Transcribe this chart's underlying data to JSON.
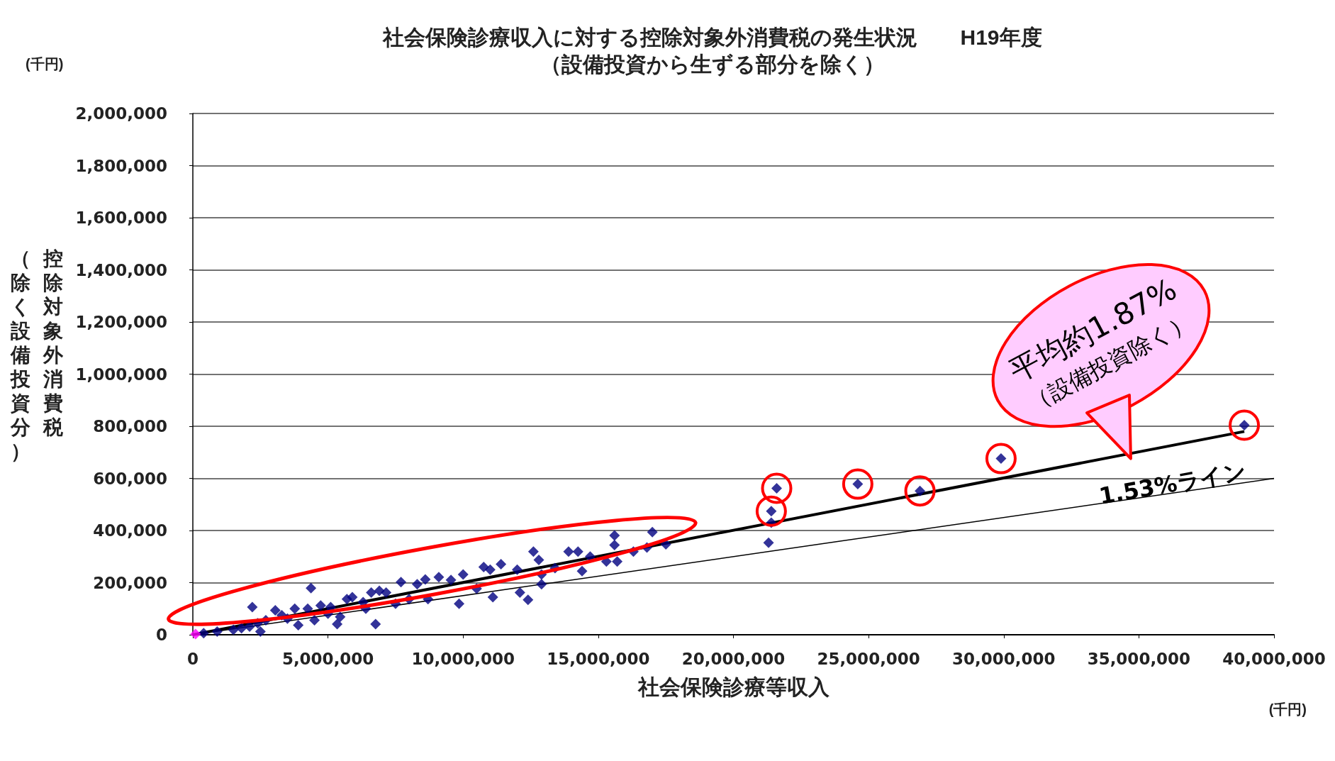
{
  "chart_data": {
    "type": "scatter",
    "title": "社会保険診療収入に対する控除対象外消費税の発生状況　　H19年度",
    "subtitle": "（設備投資から生ずる部分を除く）",
    "xlabel": "社会保険診療等収入",
    "ylabel": "控除対象外消費税",
    "annotations": [
      "(千円)",
      "(千円)",
      "平均約1.87%\n（設備投資除く）",
      "1.53%ライン",
      "（除く設備投資分）"
    ],
    "marker": "diamond",
    "grid": "y",
    "xlim": [
      0,
      40000000
    ],
    "ylim": [
      0,
      2000000
    ],
    "xticks": [
      0,
      {
        "value": 5000000,
        "label": "5,000,000"
      },
      {
        "value": 10000000,
        "label": "10,000,000"
      },
      {
        "value": 15000000,
        "label": "15,000,000"
      },
      {
        "value": 20000000,
        "label": "20,000,000"
      },
      {
        "value": 25000000,
        "label": "25,000,000"
      },
      {
        "value": 30000000,
        "label": "30,000,000"
      },
      {
        "value": 35000000,
        "label": "35,000,000"
      },
      {
        "value": 40000000,
        "label": "40,000,000"
      }
    ],
    "yticks": [
      0,
      {
        "value": 200000,
        "label": "200,000"
      },
      {
        "value": 400000,
        "label": "400,000"
      },
      {
        "value": 600000,
        "label": "600,000"
      },
      {
        "value": 800000,
        "label": "800,000"
      },
      {
        "value": 1000000,
        "label": "1,000,000"
      },
      {
        "value": 1200000,
        "label": "1,200,000"
      },
      {
        "value": 1400000,
        "label": "1,400,000"
      },
      {
        "value": 1600000,
        "label": "1,600,000"
      },
      {
        "value": 1800000,
        "label": "1,800,000"
      },
      {
        "value": 2000000,
        "label": "2,000,000"
      }
    ],
    "series": [
      {
        "color": "#000080",
        "x": [
          400000,
          900000,
          1500000,
          1800000,
          2100000,
          2200000,
          2400000,
          2500000,
          2700000,
          3050000,
          3290000,
          3500000,
          3770000,
          3900000,
          4250000,
          4370000,
          4500000,
          4730000,
          5000000,
          5100000,
          5340000,
          5450000,
          5700000,
          5900000,
          6300000,
          6400000,
          6600000,
          6760000,
          6900000,
          7150000,
          7500000,
          7700000,
          8000000,
          8300000,
          8600000,
          8700000,
          9100000,
          9550000,
          9850000,
          10000000,
          10500000,
          10760000,
          11000000,
          11100000,
          11400000,
          12000000,
          12100000,
          12400000,
          12600000,
          12800000,
          12900000,
          12900000,
          13400000,
          13900000,
          14250000,
          14400000,
          14700000,
          15300000,
          15600000,
          15600000,
          15700000,
          16300000,
          16800000,
          17000000,
          17500000,
          21400000,
          21300000
        ],
        "values": [
          6000,
          12000,
          19000,
          25000,
          31000,
          106000,
          44000,
          12000,
          56000,
          94000,
          75000,
          62000,
          100000,
          37000,
          100000,
          179000,
          56000,
          112000,
          81000,
          106000,
          41000,
          69000,
          137000,
          144000,
          125000,
          100000,
          162000,
          41000,
          169000,
          162000,
          119000,
          202000,
          137000,
          194000,
          212000,
          137000,
          221000,
          210000,
          119000,
          231000,
          177000,
          260000,
          250000,
          144000,
          271000,
          250000,
          162000,
          134000,
          319000,
          287000,
          231000,
          194000,
          256000,
          319000,
          319000,
          244000,
          300000,
          281000,
          381000,
          344000,
          281000,
          319000,
          335000,
          394000,
          347000,
          430000,
          353000
        ]
      },
      {
        "color": "#000080",
        "x": [
          21600000,
          21400000,
          24600000,
          26900000,
          29900000,
          38900000
        ],
        "values": [
          562000,
          474000,
          578000,
          552000,
          676000,
          804000
        ]
      },
      {
        "color": "#ff00ff",
        "x": [
          100000
        ],
        "values": [
          3000
        ]
      },
      {
        "type": "line",
        "marker": "none",
        "color": "#000000",
        "x": [
          0,
          38900000
        ],
        "values": [
          0,
          780000
        ]
      },
      {
        "type": "line",
        "marker": "none",
        "color": "#000000",
        "x": [
          0,
          40000000
        ],
        "values": [
          0,
          600000
        ]
      }
    ]
  }
}
